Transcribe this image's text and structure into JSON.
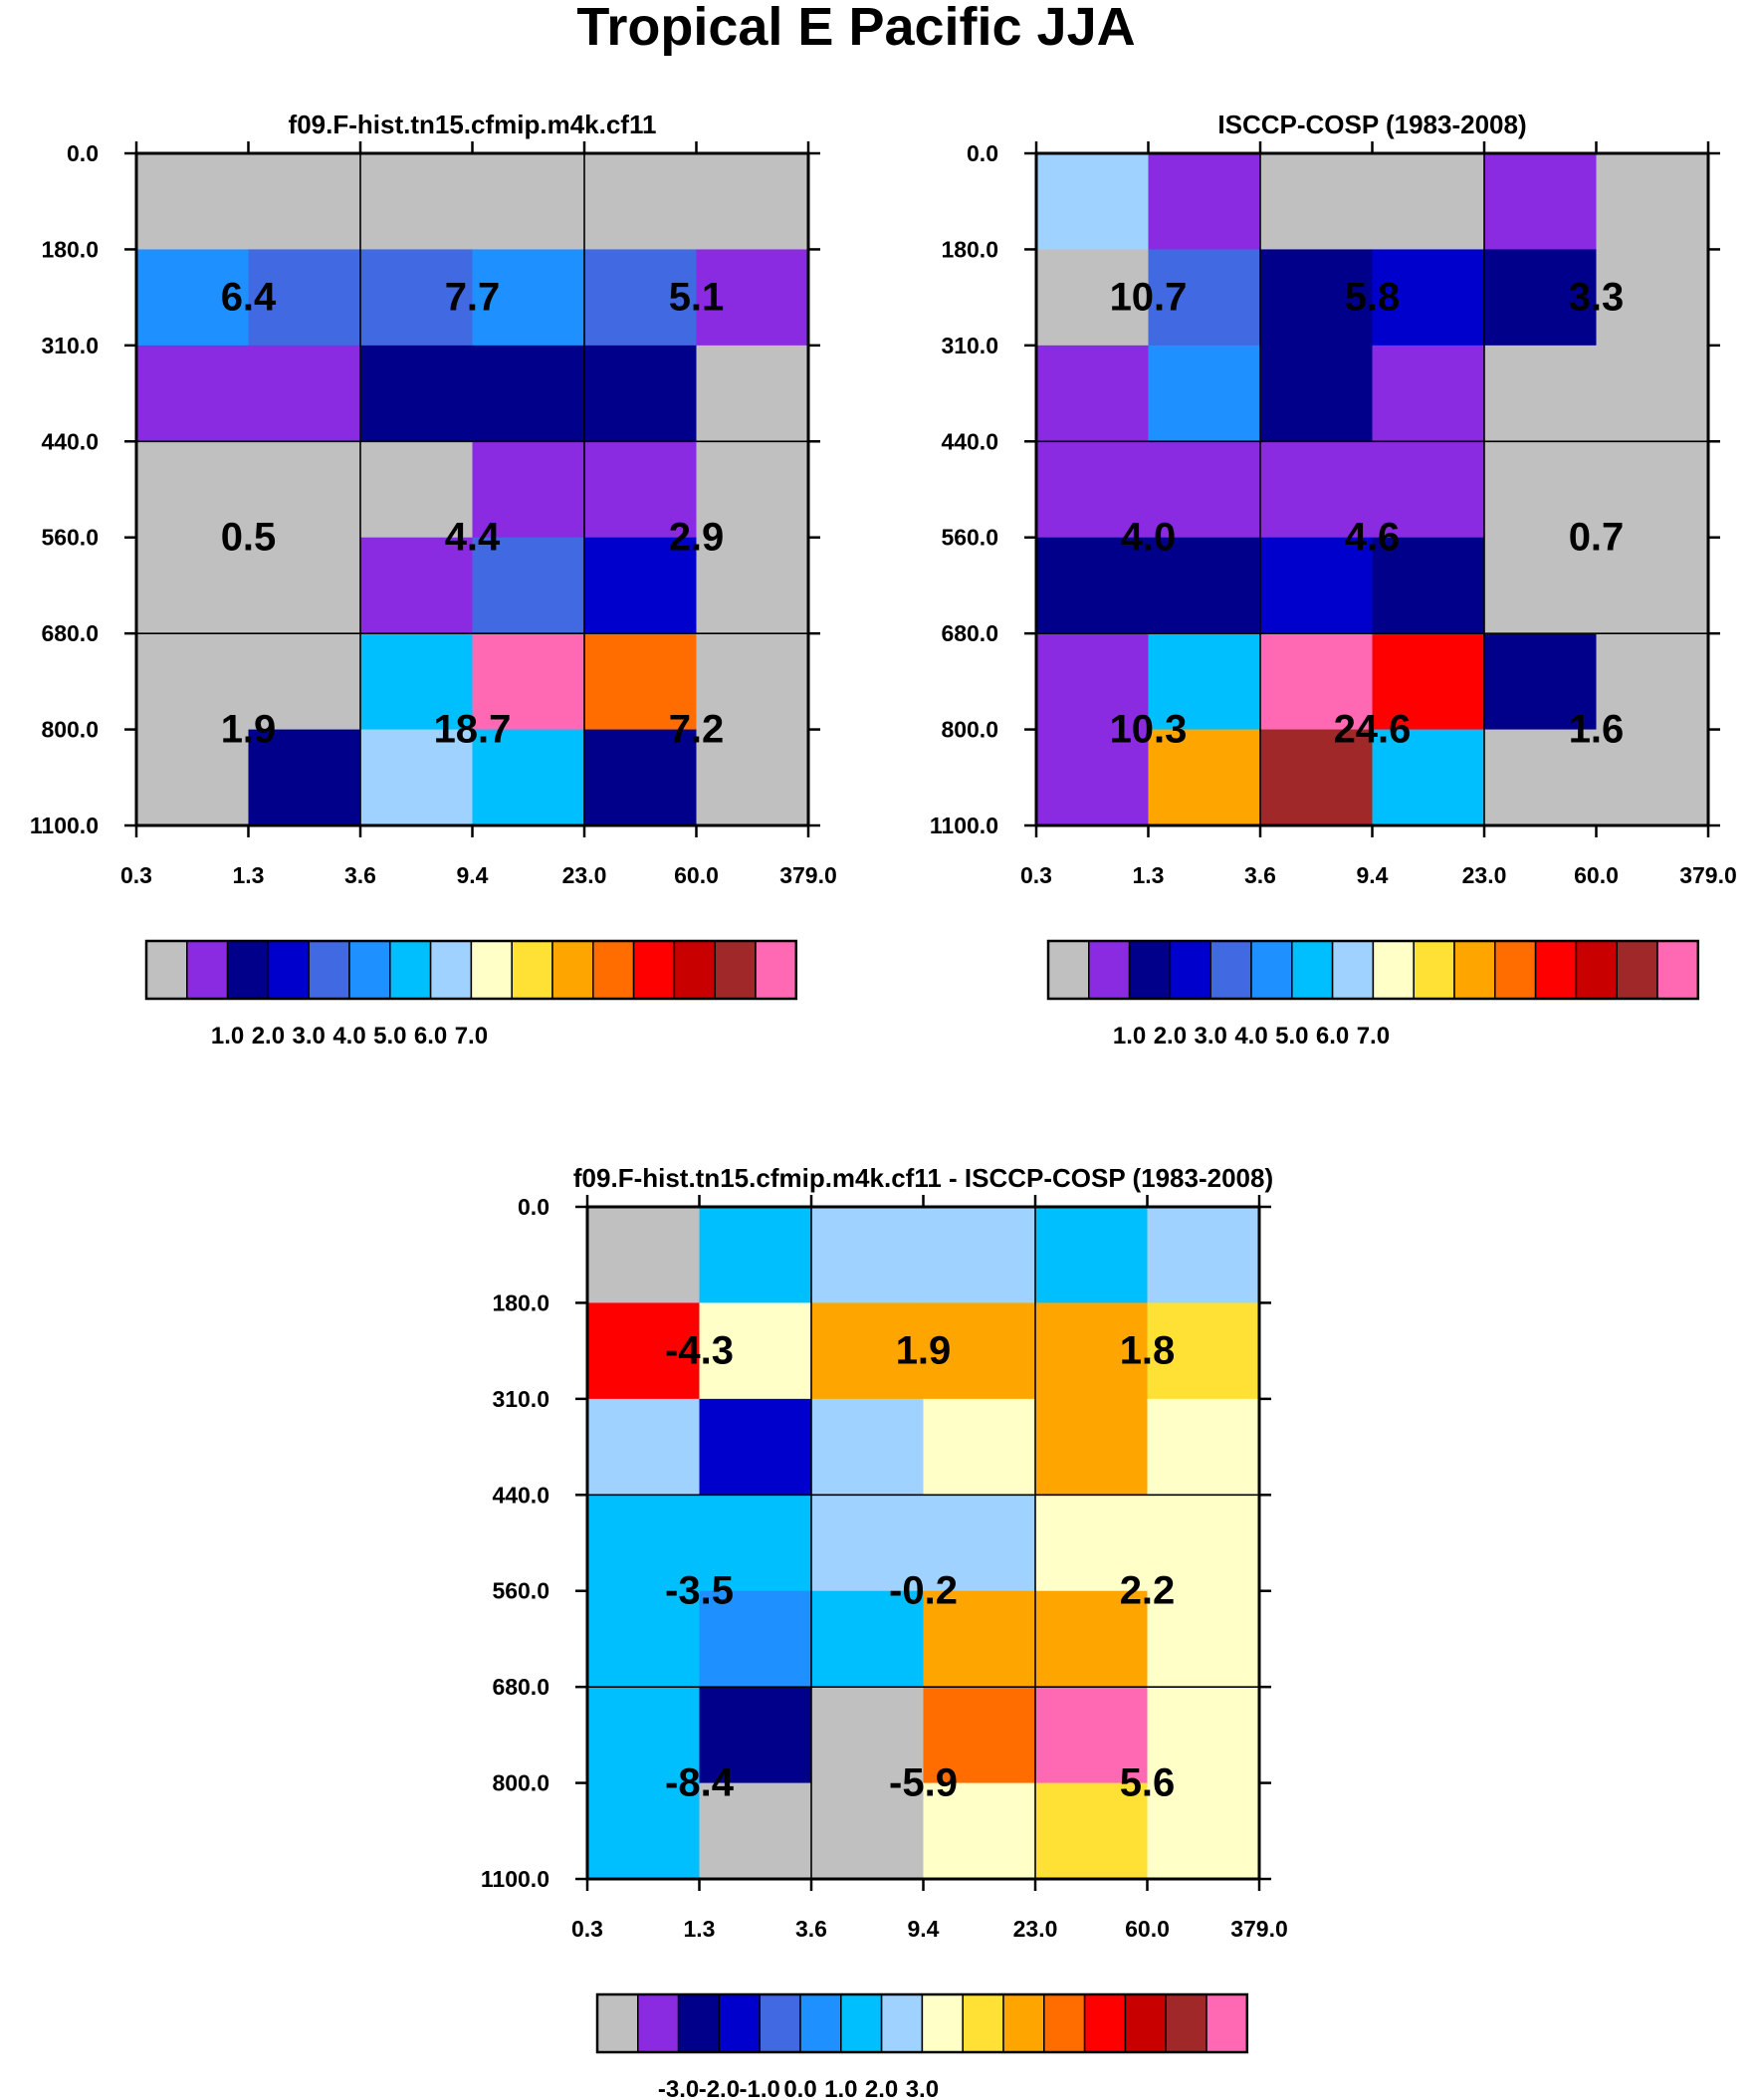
{
  "title": "Tropical E Pacific JJA",
  "chart_data": [
    {
      "type": "heatmap",
      "title": "f09.F-hist.tn15.cfmip.m4k.cf11",
      "xlabel": "",
      "ylabel": "",
      "x_ticks": [
        "0.3",
        "1.3",
        "3.6",
        "9.4",
        "23.0",
        "60.0",
        "379.0"
      ],
      "y_ticks": [
        "0.0",
        "180.0",
        "310.0",
        "440.0",
        "560.0",
        "680.0",
        "800.0",
        "1100.0"
      ],
      "cell_color_index": [
        [
          0,
          0,
          0,
          0,
          0,
          0
        ],
        [
          5,
          4,
          4,
          5,
          4,
          1
        ],
        [
          1,
          1,
          2,
          2,
          2,
          0
        ],
        [
          0,
          0,
          0,
          1,
          1,
          0
        ],
        [
          0,
          0,
          1,
          4,
          3,
          0
        ],
        [
          0,
          0,
          6,
          15,
          11,
          0
        ],
        [
          0,
          2,
          7,
          6,
          2,
          0
        ]
      ],
      "group_values": [
        [
          "6.4",
          "7.7",
          "5.1"
        ],
        [
          "0.5",
          "4.4",
          "2.9"
        ],
        [
          "1.9",
          "18.7",
          "7.2"
        ]
      ],
      "colorbar_labels": [
        "1.0",
        "2.0",
        "3.0",
        "4.0",
        "5.0",
        "6.0",
        "7.0"
      ]
    },
    {
      "type": "heatmap",
      "title": "ISCCP-COSP (1983-2008)",
      "xlabel": "",
      "ylabel": "",
      "x_ticks": [
        "0.3",
        "1.3",
        "3.6",
        "9.4",
        "23.0",
        "60.0",
        "379.0"
      ],
      "y_ticks": [
        "0.0",
        "180.0",
        "310.0",
        "440.0",
        "560.0",
        "680.0",
        "800.0",
        "1100.0"
      ],
      "cell_color_index": [
        [
          7,
          1,
          0,
          0,
          1,
          0
        ],
        [
          0,
          4,
          2,
          3,
          2,
          0
        ],
        [
          1,
          5,
          2,
          1,
          0,
          0
        ],
        [
          1,
          1,
          1,
          1,
          0,
          0
        ],
        [
          2,
          2,
          3,
          2,
          0,
          0
        ],
        [
          1,
          6,
          15,
          12,
          2,
          0
        ],
        [
          1,
          10,
          14,
          6,
          0,
          0
        ]
      ],
      "group_values": [
        [
          "10.7",
          "5.8",
          "3.3"
        ],
        [
          "4.0",
          "4.6",
          "0.7"
        ],
        [
          "10.3",
          "24.6",
          "1.6"
        ]
      ],
      "colorbar_labels": [
        "1.0",
        "2.0",
        "3.0",
        "4.0",
        "5.0",
        "6.0",
        "7.0"
      ]
    },
    {
      "type": "heatmap",
      "title": "f09.F-hist.tn15.cfmip.m4k.cf11 - ISCCP-COSP (1983-2008)",
      "xlabel": "",
      "ylabel": "",
      "x_ticks": [
        "0.3",
        "1.3",
        "3.6",
        "9.4",
        "23.0",
        "60.0",
        "379.0"
      ],
      "y_ticks": [
        "0.0",
        "180.0",
        "310.0",
        "440.0",
        "560.0",
        "680.0",
        "800.0",
        "1100.0"
      ],
      "cell_color_index": [
        [
          0,
          6,
          7,
          7,
          6,
          7
        ],
        [
          12,
          8,
          10,
          10,
          10,
          9
        ],
        [
          7,
          3,
          7,
          8,
          10,
          8
        ],
        [
          6,
          6,
          7,
          7,
          8,
          8
        ],
        [
          6,
          5,
          6,
          10,
          10,
          8
        ],
        [
          6,
          2,
          0,
          11,
          15,
          8
        ],
        [
          6,
          0,
          0,
          8,
          9,
          8
        ]
      ],
      "group_values": [
        [
          "-4.3",
          "1.9",
          "1.8"
        ],
        [
          "-3.5",
          "-0.2",
          "2.2"
        ],
        [
          "-8.4",
          "-5.9",
          "5.6"
        ]
      ],
      "colorbar_labels": [
        "-3.0",
        "-2.0",
        "-1.0",
        "0.0",
        "1.0",
        "2.0",
        "3.0"
      ]
    }
  ],
  "palette": [
    "#c0c0c0",
    "#8a2be2",
    "#00008b",
    "#0000cd",
    "#4169e1",
    "#1e90ff",
    "#00bfff",
    "#a0d2ff",
    "#ffffc8",
    "#ffe135",
    "#ffa500",
    "#ff6d00",
    "#ff0000",
    "#c80000",
    "#a02828",
    "#ff69b4"
  ]
}
